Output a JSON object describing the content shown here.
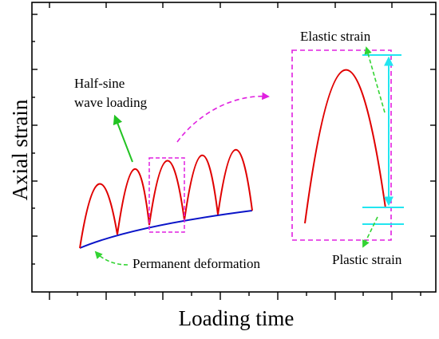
{
  "axes": {
    "x_title": "Loading time",
    "y_title": "Axial strain"
  },
  "annotations": {
    "half_sine_line1": "Half-sine",
    "half_sine_line2": "wave loading",
    "permanent": "Permanent deformation",
    "elastic": "Elastic strain",
    "plastic": "Plastic strain"
  },
  "colors": {
    "axes": "#000000",
    "wave": "#e00000",
    "permanent_curve": "#0a14c8",
    "highlight_box": "#e020e0",
    "half_sine_arrow": "#22c322",
    "dashed_arrow": "#33d433",
    "strain_marker": "#22e5f0"
  }
}
